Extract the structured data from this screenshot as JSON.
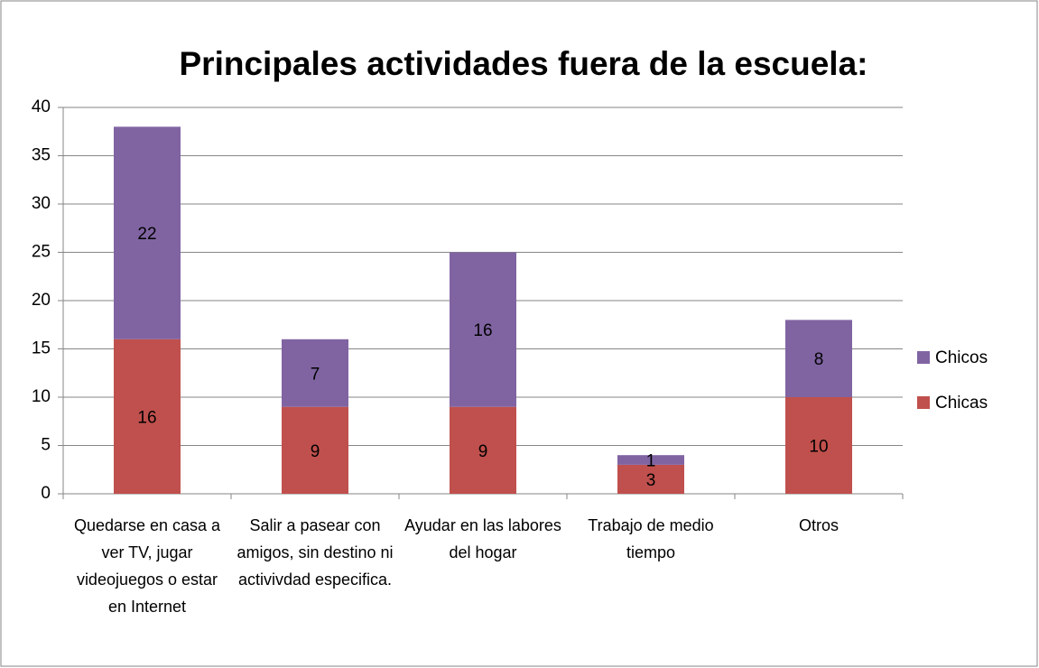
{
  "chart_data": {
    "type": "bar",
    "stacked": true,
    "title": "Principales actividades fuera de la escuela:",
    "categories": [
      "Quedarse en casa a ver TV, jugar videojuegos o estar en Internet",
      "Salir a pasear con amigos, sin destino ni activivdad especifica.",
      "Ayudar en las labores del hogar",
      "Trabajo de medio tiempo",
      "Otros"
    ],
    "series": [
      {
        "name": "Chicas",
        "color": "#c0504d",
        "values": [
          16,
          9,
          9,
          3,
          10
        ]
      },
      {
        "name": "Chicos",
        "color": "#8064a2",
        "values": [
          22,
          7,
          16,
          1,
          8
        ]
      }
    ],
    "ylim": [
      0,
      40
    ],
    "yticks": [
      0,
      5,
      10,
      15,
      20,
      25,
      30,
      35,
      40
    ],
    "grid": true,
    "legend": "right"
  }
}
